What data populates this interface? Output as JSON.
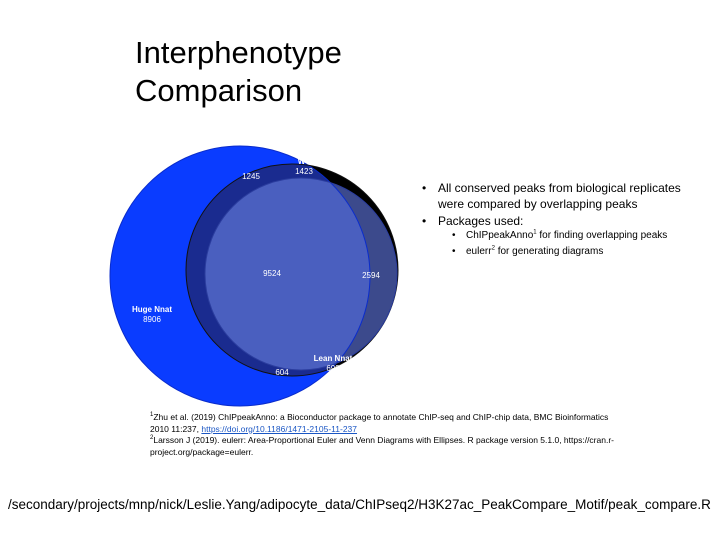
{
  "slide": {
    "title_line1": "Interphenotype",
    "title_line2": "Comparison"
  },
  "diagram": {
    "type": "euler",
    "sets": [
      {
        "name": "WT",
        "color": "#000000",
        "label_color": "#ffffff"
      },
      {
        "name": "Huge Nnat",
        "color": "#0a3cff",
        "label_color": "#ffffff"
      },
      {
        "name": "Lean Nnat",
        "color": "#7f97ff",
        "label_color": "#ffffff"
      }
    ],
    "regions": {
      "wt_only": "1423",
      "wt_huge": "1245",
      "all_three": "9524",
      "wt_lean": "2594",
      "huge_only": "8906",
      "huge_lean": "604",
      "lean_only": "699"
    }
  },
  "bullets": {
    "item1": "All conserved peaks from biological replicates were compared by overlapping peaks",
    "item2": "Packages used:",
    "sub1_name": "ChIPpeakAnno",
    "sub1_sup": "1",
    "sub1_rest": " for finding overlapping peaks",
    "sub2_name": "eulerr",
    "sub2_sup": "2",
    "sub2_rest": " for generating diagrams"
  },
  "references": {
    "ref1_sup": "1",
    "ref1_text": "Zhu et al. (2019) ChIPpeakAnno: a Bioconductor package to annotate ChIP-seq and ChIP-chip data, BMC Bioinformatics 2010 11:237, ",
    "ref1_link": "https://doi.org/10.1186/1471-2105-11-237",
    "ref2_sup": "2",
    "ref2_text": "Larsson J (2019). eulerr: Area-Proportional Euler and Venn Diagrams with Ellipses. R package version 5.1.0, https://cran.r-project.org/package=eulerr."
  },
  "footer": {
    "script_path": "/secondary/projects/mnp/nick/Leslie.Yang/adipocyte_data/ChIPseq2/H3K27ac_PeakCompare_Motif/peak_compare.R"
  }
}
